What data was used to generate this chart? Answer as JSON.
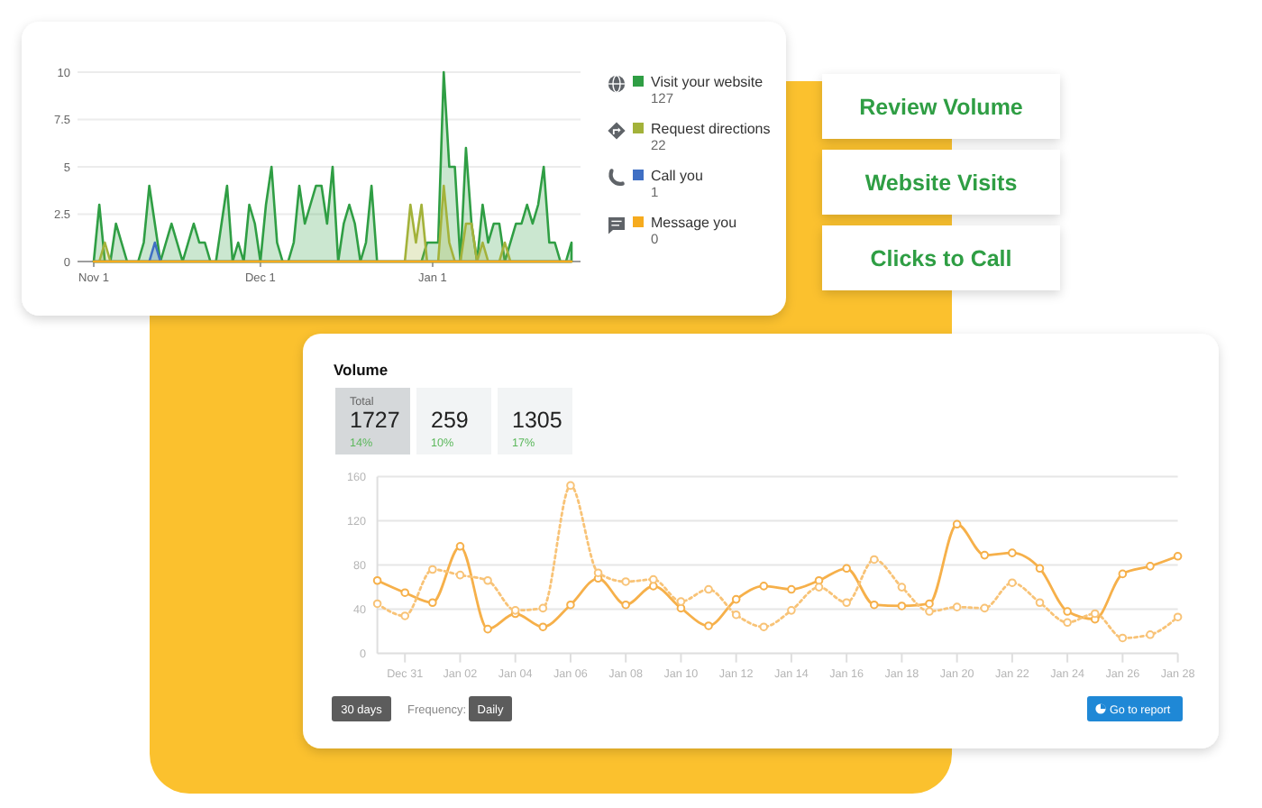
{
  "chart_data": [
    {
      "type": "area",
      "categories": [
        "Nov 1",
        null,
        null,
        null,
        null,
        null,
        null,
        null,
        null,
        null,
        null,
        null,
        null,
        null,
        null,
        null,
        null,
        null,
        null,
        null,
        null,
        null,
        null,
        null,
        null,
        null,
        null,
        null,
        null,
        null,
        "Dec 1",
        null,
        null,
        null,
        null,
        null,
        null,
        null,
        null,
        null,
        null,
        null,
        null,
        null,
        null,
        null,
        null,
        null,
        null,
        null,
        null,
        null,
        null,
        null,
        null,
        null,
        null,
        null,
        null,
        null,
        null,
        "Jan 1",
        null,
        null,
        null,
        null,
        null,
        null,
        null,
        null,
        null,
        null,
        null,
        null,
        null,
        null,
        null,
        null,
        null,
        null,
        null,
        null,
        null,
        null,
        null,
        null,
        null
      ],
      "series": [
        {
          "name": "Visit your website",
          "color": "#2f9e44",
          "values": [
            0,
            3,
            0,
            0,
            2,
            1,
            0,
            0,
            0,
            1,
            4,
            2,
            0,
            1,
            2,
            1,
            0,
            1,
            2,
            1,
            1,
            0,
            0,
            2,
            4,
            0,
            1,
            0,
            3,
            2,
            0,
            3,
            5,
            1,
            0,
            0,
            1,
            4,
            2,
            3,
            4,
            4,
            2,
            5,
            0,
            2,
            3,
            2,
            0,
            1,
            4,
            0,
            0,
            0,
            0,
            0,
            0,
            0,
            0,
            0,
            1,
            1,
            1,
            10,
            5,
            5,
            0,
            6,
            2,
            0,
            3,
            1,
            2,
            2,
            0,
            1,
            2,
            2,
            3,
            2,
            3,
            5,
            1,
            1,
            0,
            0,
            1
          ]
        },
        {
          "name": "Request directions",
          "color": "#a3b23a",
          "values": [
            0,
            0,
            1,
            0,
            0,
            0,
            0,
            0,
            0,
            0,
            0,
            0,
            0,
            0,
            0,
            0,
            0,
            0,
            0,
            0,
            0,
            0,
            0,
            0,
            0,
            0,
            0,
            0,
            0,
            0,
            0,
            0,
            0,
            0,
            0,
            0,
            0,
            0,
            0,
            0,
            0,
            0,
            0,
            0,
            0,
            0,
            0,
            0,
            0,
            0,
            0,
            0,
            0,
            0,
            0,
            0,
            0,
            3,
            1,
            3,
            0,
            0,
            0,
            4,
            1,
            0,
            0,
            2,
            2,
            0,
            1,
            0,
            0,
            0,
            1,
            0,
            0,
            0,
            0,
            0,
            0,
            0,
            0,
            0,
            0,
            0,
            0
          ]
        },
        {
          "name": "Call you",
          "color": "#3f6fc4",
          "values": [
            0,
            0,
            0,
            0,
            0,
            0,
            0,
            0,
            0,
            0,
            0,
            1,
            0,
            0,
            0,
            0,
            0,
            0,
            0,
            0,
            0,
            0,
            0,
            0,
            0,
            0,
            0,
            0,
            0,
            0,
            0,
            0,
            0,
            0,
            0,
            0,
            0,
            0,
            0,
            0,
            0,
            0,
            0,
            0,
            0,
            0,
            0,
            0,
            0,
            0,
            0,
            0,
            0,
            0,
            0,
            0,
            0,
            0,
            0,
            0,
            0,
            0,
            0,
            0,
            0,
            0,
            0,
            0,
            0,
            0,
            0,
            0,
            0,
            0,
            0,
            0,
            0,
            0,
            0,
            0,
            0,
            0,
            0,
            0,
            0,
            0,
            0
          ]
        },
        {
          "name": "Message you",
          "type": "line",
          "color": "#f6ab1e",
          "values": [
            0,
            0,
            0,
            0,
            0,
            0,
            0,
            0,
            0,
            0,
            0,
            0,
            0,
            0,
            0,
            0,
            0,
            0,
            0,
            0,
            0,
            0,
            0,
            0,
            0,
            0,
            0,
            0,
            0,
            0,
            0,
            0,
            0,
            0,
            0,
            0,
            0,
            0,
            0,
            0,
            0,
            0,
            0,
            0,
            0,
            0,
            0,
            0,
            0,
            0,
            0,
            0,
            0,
            0,
            0,
            0,
            0,
            0,
            0,
            0,
            0,
            0,
            0,
            0,
            0,
            0,
            0,
            0,
            0,
            0,
            0,
            0,
            0,
            0,
            0,
            0,
            0,
            0,
            0,
            0,
            0,
            0,
            0,
            0,
            0,
            0,
            0
          ]
        }
      ],
      "ylim": [
        0,
        10
      ],
      "yticks": [
        0,
        2.5,
        5,
        7.5,
        10
      ],
      "grid": "y",
      "legend": "right",
      "annotations": [
        "127",
        "22",
        "1",
        "0"
      ]
    },
    {
      "type": "other",
      "annotations": [
        "Review Volume",
        "Website Visits",
        "Clicks to Call"
      ]
    },
    {
      "type": "other",
      "title": "Volume",
      "categories": [
        "Total",
        null,
        null
      ],
      "values": [
        1727,
        259,
        1305
      ],
      "data_labels": true,
      "annotations": [
        "14%",
        "10%",
        "17%"
      ]
    },
    {
      "type": "line",
      "categories": [
        null,
        "Dec 31",
        null,
        "Jan 02",
        null,
        "Jan 04",
        null,
        "Jan 06",
        null,
        "Jan 08",
        null,
        "Jan 10",
        null,
        "Jan 12",
        null,
        "Jan 14",
        null,
        "Jan 16",
        null,
        "Jan 18",
        null,
        "Jan 20",
        null,
        "Jan 22",
        null,
        "Jan 24",
        null,
        "Jan 26",
        null,
        "Jan 28"
      ],
      "series": [
        {
          "color": "#f6b04a",
          "values": [
            66,
            55,
            46,
            97,
            22,
            36,
            24,
            44,
            68,
            44,
            61,
            41,
            25,
            49,
            61,
            58,
            66,
            77,
            44,
            43,
            45,
            117,
            89,
            91,
            77,
            38,
            31,
            72,
            79,
            88
          ]
        },
        {
          "color": "#f8c377",
          "line_style": "dotted",
          "values": [
            45,
            34,
            76,
            71,
            66,
            39,
            41,
            152,
            73,
            65,
            67,
            47,
            58,
            35,
            24,
            39,
            60,
            46,
            85,
            60,
            38,
            42,
            41,
            64,
            46,
            28,
            36,
            14,
            17,
            33
          ]
        }
      ],
      "ylim": [
        0,
        160
      ],
      "yticks": [
        0,
        40,
        80,
        120,
        160
      ],
      "grid": "y",
      "marker": "circle",
      "line_style": "solid",
      "annotations": [
        "30 days",
        "Frequency:",
        "Daily",
        "Go to report"
      ]
    }
  ]
}
